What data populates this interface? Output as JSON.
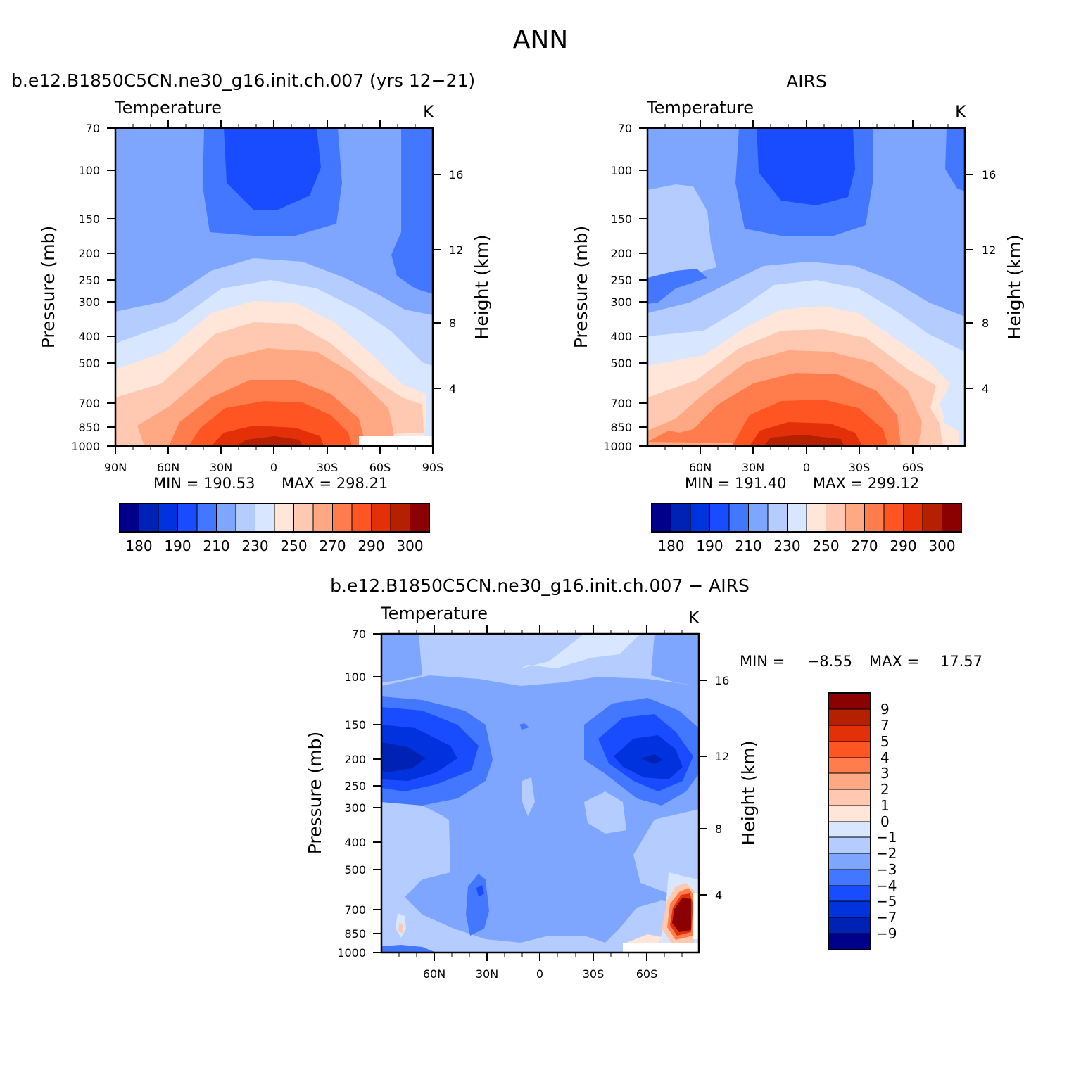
{
  "title": "ANN",
  "units": "K",
  "variable_label": "Temperature",
  "chart_data": [
    {
      "type": "heatmap",
      "title": "b.e12.B1850C5CN.ne30_g16.init.ch.007 (yrs 12−21)",
      "variable": "Temperature",
      "units": "K",
      "ylabel": "Pressure (mb)",
      "y2label": "Height (km)",
      "x_ticks": [
        "90N",
        "60N",
        "30N",
        "0",
        "30S",
        "60S",
        "90S"
      ],
      "y_ticks": [
        "70",
        "100",
        "150",
        "200",
        "250",
        "300",
        "400",
        "500",
        "700",
        "850",
        "1000"
      ],
      "y2_ticks": [
        "16",
        "12",
        "8",
        "4"
      ],
      "min_text": "MIN = 190.53",
      "max_text": "MAX = 298.21",
      "colorbar_labels": [
        "180",
        "190",
        "210",
        "230",
        "250",
        "270",
        "290",
        "300"
      ]
    },
    {
      "type": "heatmap",
      "title": "AIRS",
      "variable": "Temperature",
      "units": "K",
      "ylabel": "Pressure (mb)",
      "y2label": "Height (km)",
      "x_ticks": [
        "60N",
        "30N",
        "0",
        "30S",
        "60S"
      ],
      "y_ticks": [
        "70",
        "100",
        "150",
        "200",
        "250",
        "300",
        "400",
        "500",
        "700",
        "850",
        "1000"
      ],
      "y2_ticks": [
        "16",
        "12",
        "8",
        "4"
      ],
      "min_text": "MIN = 191.40",
      "max_text": "MAX = 299.12",
      "colorbar_labels": [
        "180",
        "190",
        "210",
        "230",
        "250",
        "270",
        "290",
        "300"
      ]
    },
    {
      "type": "heatmap",
      "title": "b.e12.B1850C5CN.ne30_g16.init.ch.007 − AIRS",
      "variable": "Temperature",
      "units": "K",
      "ylabel": "Pressure (mb)",
      "y2label": "Height (km)",
      "x_ticks": [
        "60N",
        "30N",
        "0",
        "30S",
        "60S"
      ],
      "y_ticks": [
        "70",
        "100",
        "150",
        "200",
        "250",
        "300",
        "400",
        "500",
        "700",
        "850",
        "1000"
      ],
      "y2_ticks": [
        "16",
        "12",
        "8",
        "4"
      ],
      "min_text": "MIN =",
      "min_value": "−8.55",
      "max_text": "MAX =",
      "max_value": "17.57",
      "colorbar_labels": [
        "9",
        "7",
        "5",
        "4",
        "3",
        "2",
        "1",
        "0",
        "−1",
        "−2",
        "−3",
        "−4",
        "−5",
        "−7",
        "−9"
      ]
    }
  ],
  "colors": {
    "temperature_scale": [
      "#00008b",
      "#0022b4",
      "#0033dd",
      "#1a4cff",
      "#4477ff",
      "#7fa6ff",
      "#b4ccff",
      "#d9e6ff",
      "#ffe6d9",
      "#ffc8b0",
      "#ffa883",
      "#ff7d4d",
      "#ff5522",
      "#e33008",
      "#b42000",
      "#8b0000"
    ],
    "difference_scale_top_to_bottom": [
      "#8b0000",
      "#b42000",
      "#e33008",
      "#ff5522",
      "#ff7d4d",
      "#ffa883",
      "#ffc8b0",
      "#ffe6d9",
      "#d9e6ff",
      "#b4ccff",
      "#7fa6ff",
      "#4477ff",
      "#1a4cff",
      "#0033dd",
      "#0022b4",
      "#00008b"
    ]
  }
}
